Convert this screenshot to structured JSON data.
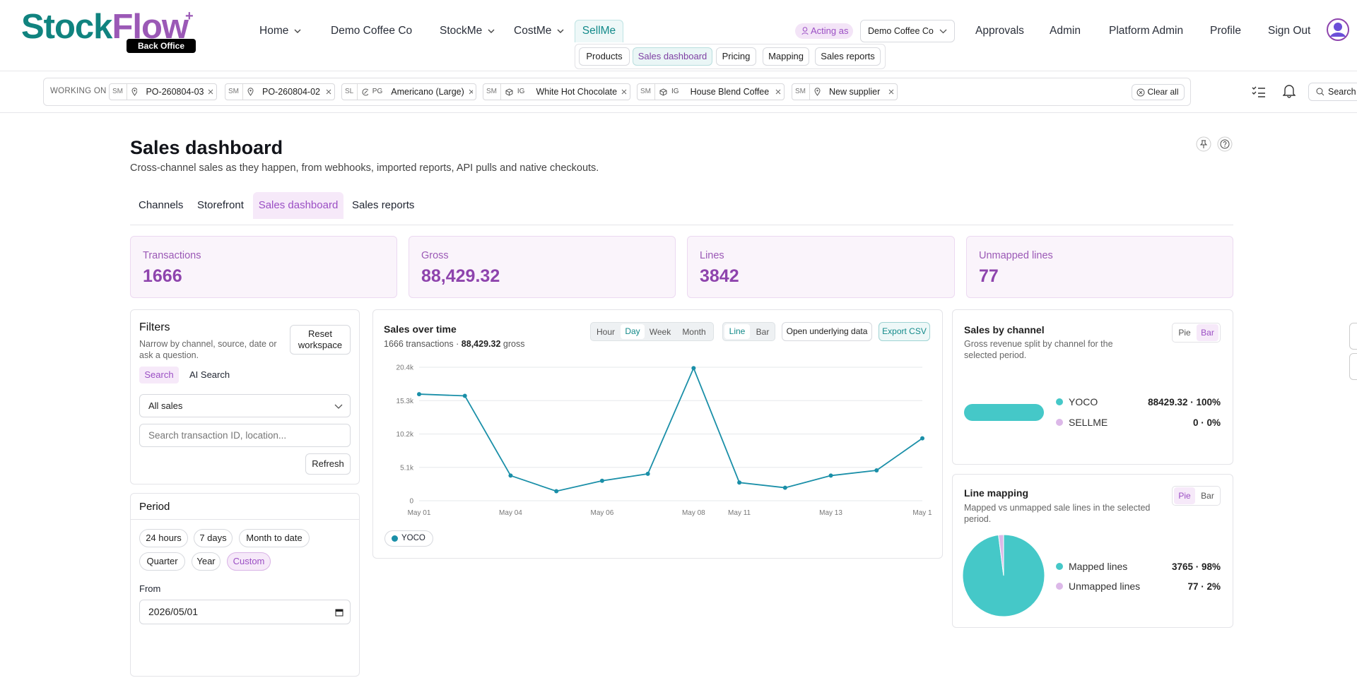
{
  "header": {
    "logo": [
      "Stock",
      "Flow",
      "+"
    ],
    "logo_badge": "Back Office",
    "nav": [
      "Home",
      "Demo Coffee Co",
      "StockMe",
      "CostMe",
      "SellMe"
    ],
    "subnav": [
      "Products",
      "Sales dashboard",
      "Pricing",
      "Mapping",
      "Sales reports"
    ],
    "acting_as": "Acting as",
    "account": "Demo Coffee Co",
    "links": [
      "Approvals",
      "Admin",
      "Platform Admin",
      "Profile",
      "Sign Out"
    ]
  },
  "working_on": {
    "label": "WORKING ON",
    "chips": [
      {
        "source": "SM",
        "label": "PO-260804-03"
      },
      {
        "source": "SM",
        "label": "PO-260804-02"
      },
      {
        "source": "SL",
        "kind": "PG",
        "label": "Americano (Large)"
      },
      {
        "source": "SM",
        "kind": "IG",
        "label": "White Hot Chocolate"
      },
      {
        "source": "SM",
        "kind": "IG",
        "label": "House Blend Coffee"
      },
      {
        "source": "SM",
        "label": "New supplier"
      }
    ],
    "clear": "Clear all",
    "search": "Search"
  },
  "page": {
    "title": "Sales dashboard",
    "subtitle": "Cross-channel sales as they happen, from webhooks, imported reports, API pulls and native checkouts.",
    "tabs": [
      "Channels",
      "Storefront",
      "Sales dashboard",
      "Sales reports"
    ]
  },
  "kpis": [
    {
      "label": "Transactions",
      "value": "1666"
    },
    {
      "label": "Gross",
      "value": "88,429.32"
    },
    {
      "label": "Lines",
      "value": "3842"
    },
    {
      "label": "Unmapped lines",
      "value": "77"
    }
  ],
  "filters": {
    "title": "Filters",
    "description": "Narrow by channel, source, date or ask a question.",
    "reset": "Reset workspace",
    "modes": [
      "Search",
      "AI Search"
    ],
    "select": "All sales",
    "search_placeholder": "Search transaction ID, location...",
    "refresh": "Refresh"
  },
  "period": {
    "title": "Period",
    "presets": [
      "24 hours",
      "7 days",
      "Month to date",
      "Quarter",
      "Year",
      "Custom"
    ],
    "from_label": "From",
    "from": "2026/05/01"
  },
  "chart_data": [
    {
      "type": "line",
      "title": "Sales over time",
      "subtitle": [
        "1666 transactions · ",
        "88,429.32",
        " gross"
      ],
      "granularity": [
        "Hour",
        "Day",
        "Week",
        "Month"
      ],
      "views": [
        "Line",
        "Bar"
      ],
      "actions": [
        "Open underlying data",
        "Export CSV"
      ],
      "categories": [
        "May 01",
        null,
        "May 04",
        null,
        "May 06",
        null,
        "May 08",
        "May 11",
        null,
        "May 13",
        null,
        "May 1"
      ],
      "series": [
        {
          "name": "YOCO",
          "color": "#1a8fa8",
          "values": [
            16290,
            16030,
            3840,
            1460,
            3050,
            4110,
            20270,
            2780,
            1990,
            3840,
            4640,
            9540
          ]
        }
      ],
      "ylim": [
        0,
        20400
      ],
      "yticks": [
        0,
        {
          "value": 5100,
          "label": "5.1k"
        },
        {
          "value": 10200,
          "label": "10.2k"
        },
        {
          "value": 15300,
          "label": "15.3k"
        },
        {
          "value": 20400,
          "label": "20.4k"
        }
      ],
      "grid": true
    },
    {
      "type": "bar",
      "orientation": "horizontal",
      "stacked": true,
      "title": "Sales by channel",
      "subtitle": "Gross revenue split by channel for the selected period.",
      "toggle": [
        "Pie",
        "Bar"
      ],
      "categories": [
        "YOCO",
        "SELLME"
      ],
      "values": [
        88429.32,
        0
      ],
      "value_labels": [
        "88429.32 · 100%",
        "0 · 0%"
      ],
      "colors": [
        "#45c8c8",
        "#dcb8e8"
      ]
    },
    {
      "type": "pie",
      "title": "Line mapping",
      "subtitle": "Mapped vs unmapped sale lines in the selected period.",
      "toggle": [
        "Pie",
        "Bar"
      ],
      "categories": [
        "Mapped lines",
        "Unmapped lines"
      ],
      "values": [
        3765,
        77
      ],
      "value_labels": [
        "3765 · 98%",
        "77 · 2%"
      ],
      "colors": [
        "#45c8c8",
        "#dcb8e8"
      ]
    }
  ]
}
